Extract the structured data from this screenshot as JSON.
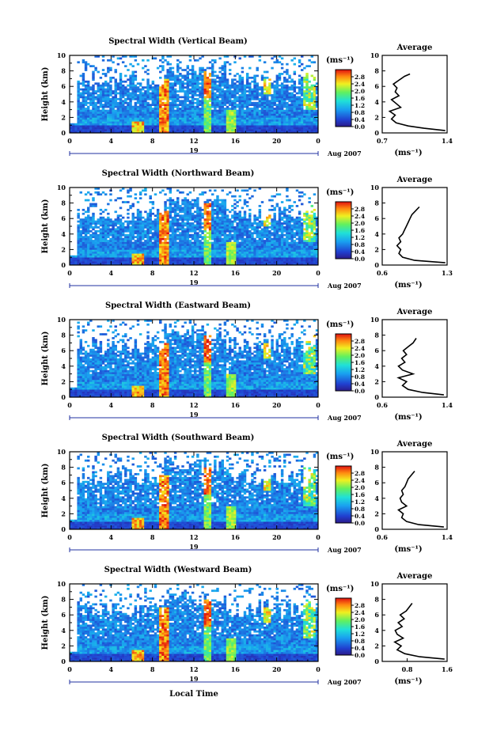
{
  "figure": {
    "xlabel": "Local Time",
    "date_label": "Aug 2007",
    "day_label": "19"
  },
  "chart_data": [
    {
      "type": "heatmap",
      "title": "Spectral Width (Vertical Beam)",
      "xlabel": "",
      "ylabel": "Height (km)",
      "x_ticks": [
        "0",
        "4",
        "8",
        "12",
        "16",
        "20",
        "0"
      ],
      "xlim": [
        0,
        24
      ],
      "y_ticks": [
        "0",
        "2",
        "4",
        "6",
        "8",
        "10"
      ],
      "ylim": [
        0,
        10
      ],
      "colorbar": {
        "label": "(ms⁻¹)",
        "ticks": [
          "2.8",
          "2.4",
          "2.0",
          "1.6",
          "1.2",
          "0.8",
          "0.4",
          "0.0"
        ],
        "range": [
          0,
          3.2
        ]
      },
      "profile": {
        "title": "Average",
        "xlabel": "(ms⁻¹)",
        "x_ticks": [
          "0.7",
          "1.4"
        ],
        "xlim": [
          0.7,
          1.4
        ],
        "y_ticks": [
          "0",
          "2",
          "4",
          "6",
          "8",
          "10"
        ],
        "ylim": [
          0,
          10
        ],
        "points": [
          [
            1.38,
            0.3
          ],
          [
            1.15,
            0.6
          ],
          [
            0.98,
            0.9
          ],
          [
            0.85,
            1.3
          ],
          [
            0.8,
            1.8
          ],
          [
            0.84,
            2.3
          ],
          [
            0.78,
            2.8
          ],
          [
            0.9,
            3.3
          ],
          [
            0.85,
            3.8
          ],
          [
            0.8,
            4.3
          ],
          [
            0.88,
            4.8
          ],
          [
            0.84,
            5.3
          ],
          [
            0.86,
            5.8
          ],
          [
            0.82,
            6.3
          ],
          [
            0.88,
            6.8
          ],
          [
            0.94,
            7.3
          ],
          [
            1.0,
            7.6
          ]
        ]
      }
    },
    {
      "type": "heatmap",
      "title": "Spectral Width (Northward Beam)",
      "xlabel": "",
      "ylabel": "Height (km)",
      "x_ticks": [
        "0",
        "4",
        "8",
        "12",
        "16",
        "20",
        "0"
      ],
      "xlim": [
        0,
        24
      ],
      "y_ticks": [
        "0",
        "2",
        "4",
        "6",
        "8",
        "10"
      ],
      "ylim": [
        0,
        10
      ],
      "colorbar": {
        "label": "(ms⁻¹)",
        "ticks": [
          "2.8",
          "2.4",
          "2.0",
          "1.6",
          "1.2",
          "0.8",
          "0.4",
          "0.0"
        ],
        "range": [
          0,
          3.2
        ]
      },
      "profile": {
        "title": "Average",
        "xlabel": "(ms⁻¹)",
        "x_ticks": [
          "0.6",
          "1.3"
        ],
        "xlim": [
          0.6,
          1.3
        ],
        "y_ticks": [
          "0",
          "2",
          "4",
          "6",
          "8",
          "10"
        ],
        "ylim": [
          0,
          10
        ],
        "points": [
          [
            1.28,
            0.3
          ],
          [
            0.95,
            0.6
          ],
          [
            0.82,
            1.0
          ],
          [
            0.78,
            1.5
          ],
          [
            0.8,
            2.0
          ],
          [
            0.76,
            2.5
          ],
          [
            0.8,
            3.0
          ],
          [
            0.78,
            3.5
          ],
          [
            0.82,
            4.0
          ],
          [
            0.84,
            4.5
          ],
          [
            0.86,
            5.0
          ],
          [
            0.88,
            5.5
          ],
          [
            0.9,
            6.0
          ],
          [
            0.92,
            6.5
          ],
          [
            0.96,
            7.0
          ],
          [
            1.0,
            7.5
          ]
        ]
      }
    },
    {
      "type": "heatmap",
      "title": "Spectral Width (Eastward Beam)",
      "xlabel": "",
      "ylabel": "Height (km)",
      "x_ticks": [
        "0",
        "4",
        "8",
        "12",
        "16",
        "20",
        "0"
      ],
      "xlim": [
        0,
        24
      ],
      "y_ticks": [
        "0",
        "2",
        "4",
        "6",
        "8",
        "10"
      ],
      "ylim": [
        0,
        10
      ],
      "colorbar": {
        "label": "(ms⁻¹)",
        "ticks": [
          "2.8",
          "2.4",
          "2.0",
          "1.6",
          "1.2",
          "0.8",
          "0.4",
          "0.0"
        ],
        "range": [
          0,
          3.2
        ]
      },
      "profile": {
        "title": "Average",
        "xlabel": "(ms⁻¹)",
        "x_ticks": [
          "0.6",
          "1.4"
        ],
        "xlim": [
          0.6,
          1.4
        ],
        "y_ticks": [
          "0",
          "2",
          "4",
          "6",
          "8",
          "10"
        ],
        "ylim": [
          0,
          10
        ],
        "points": [
          [
            1.36,
            0.3
          ],
          [
            1.1,
            0.6
          ],
          [
            0.92,
            1.0
          ],
          [
            0.85,
            1.5
          ],
          [
            0.9,
            2.0
          ],
          [
            0.8,
            2.5
          ],
          [
            0.98,
            3.0
          ],
          [
            0.85,
            3.5
          ],
          [
            0.8,
            4.0
          ],
          [
            0.88,
            4.5
          ],
          [
            0.84,
            5.0
          ],
          [
            0.9,
            5.5
          ],
          [
            0.86,
            6.0
          ],
          [
            0.92,
            6.5
          ],
          [
            0.98,
            7.0
          ],
          [
            1.02,
            7.6
          ]
        ]
      }
    },
    {
      "type": "heatmap",
      "title": "Spectral Width (Southward Beam)",
      "xlabel": "",
      "ylabel": "Height (km)",
      "x_ticks": [
        "0",
        "4",
        "8",
        "12",
        "16",
        "20",
        "0"
      ],
      "xlim": [
        0,
        24
      ],
      "y_ticks": [
        "0",
        "2",
        "4",
        "6",
        "8",
        "10"
      ],
      "ylim": [
        0,
        10
      ],
      "colorbar": {
        "label": "(ms⁻¹)",
        "ticks": [
          "2.8",
          "2.4",
          "2.0",
          "1.6",
          "1.2",
          "0.8",
          "0.4",
          "0.0"
        ],
        "range": [
          0,
          3.2
        ]
      },
      "profile": {
        "title": "Average",
        "xlabel": "(ms⁻¹)",
        "x_ticks": [
          "0.6",
          "1.4"
        ],
        "xlim": [
          0.6,
          1.4
        ],
        "y_ticks": [
          "0",
          "2",
          "4",
          "6",
          "8",
          "10"
        ],
        "ylim": [
          0,
          10
        ],
        "points": [
          [
            1.36,
            0.3
          ],
          [
            1.05,
            0.6
          ],
          [
            0.9,
            1.0
          ],
          [
            0.84,
            1.5
          ],
          [
            0.86,
            2.0
          ],
          [
            0.8,
            2.5
          ],
          [
            0.9,
            3.0
          ],
          [
            0.84,
            3.5
          ],
          [
            0.82,
            4.0
          ],
          [
            0.86,
            4.5
          ],
          [
            0.84,
            5.0
          ],
          [
            0.88,
            5.5
          ],
          [
            0.9,
            6.0
          ],
          [
            0.92,
            6.5
          ],
          [
            0.96,
            7.0
          ],
          [
            1.0,
            7.5
          ]
        ]
      }
    },
    {
      "type": "heatmap",
      "title": "Spectral Width (Westward Beam)",
      "xlabel": "",
      "ylabel": "Height (km)",
      "x_ticks": [
        "0",
        "4",
        "8",
        "12",
        "16",
        "20",
        "0"
      ],
      "xlim": [
        0,
        24
      ],
      "y_ticks": [
        "0",
        "2",
        "4",
        "6",
        "8",
        "10"
      ],
      "ylim": [
        0,
        10
      ],
      "colorbar": {
        "label": "(ms⁻¹)",
        "ticks": [
          "2.8",
          "2.4",
          "2.0",
          "1.6",
          "1.2",
          "0.8",
          "0.4",
          "0.0"
        ],
        "range": [
          0,
          3.2
        ]
      },
      "profile": {
        "title": "Average",
        "xlabel": "(ms⁻¹)",
        "x_ticks": [
          "0.8",
          "1.6"
        ],
        "xlim": [
          0.3,
          1.6
        ],
        "y_ticks": [
          "0",
          "2",
          "4",
          "6",
          "8",
          "10"
        ],
        "ylim": [
          0,
          10
        ],
        "points": [
          [
            1.55,
            0.3
          ],
          [
            1.05,
            0.6
          ],
          [
            0.75,
            1.0
          ],
          [
            0.6,
            1.5
          ],
          [
            0.68,
            2.0
          ],
          [
            0.55,
            2.5
          ],
          [
            0.72,
            3.0
          ],
          [
            0.6,
            3.5
          ],
          [
            0.56,
            4.0
          ],
          [
            0.7,
            4.5
          ],
          [
            0.62,
            5.0
          ],
          [
            0.74,
            5.5
          ],
          [
            0.66,
            6.0
          ],
          [
            0.78,
            6.5
          ],
          [
            0.84,
            7.0
          ],
          [
            0.9,
            7.5
          ]
        ]
      }
    }
  ]
}
